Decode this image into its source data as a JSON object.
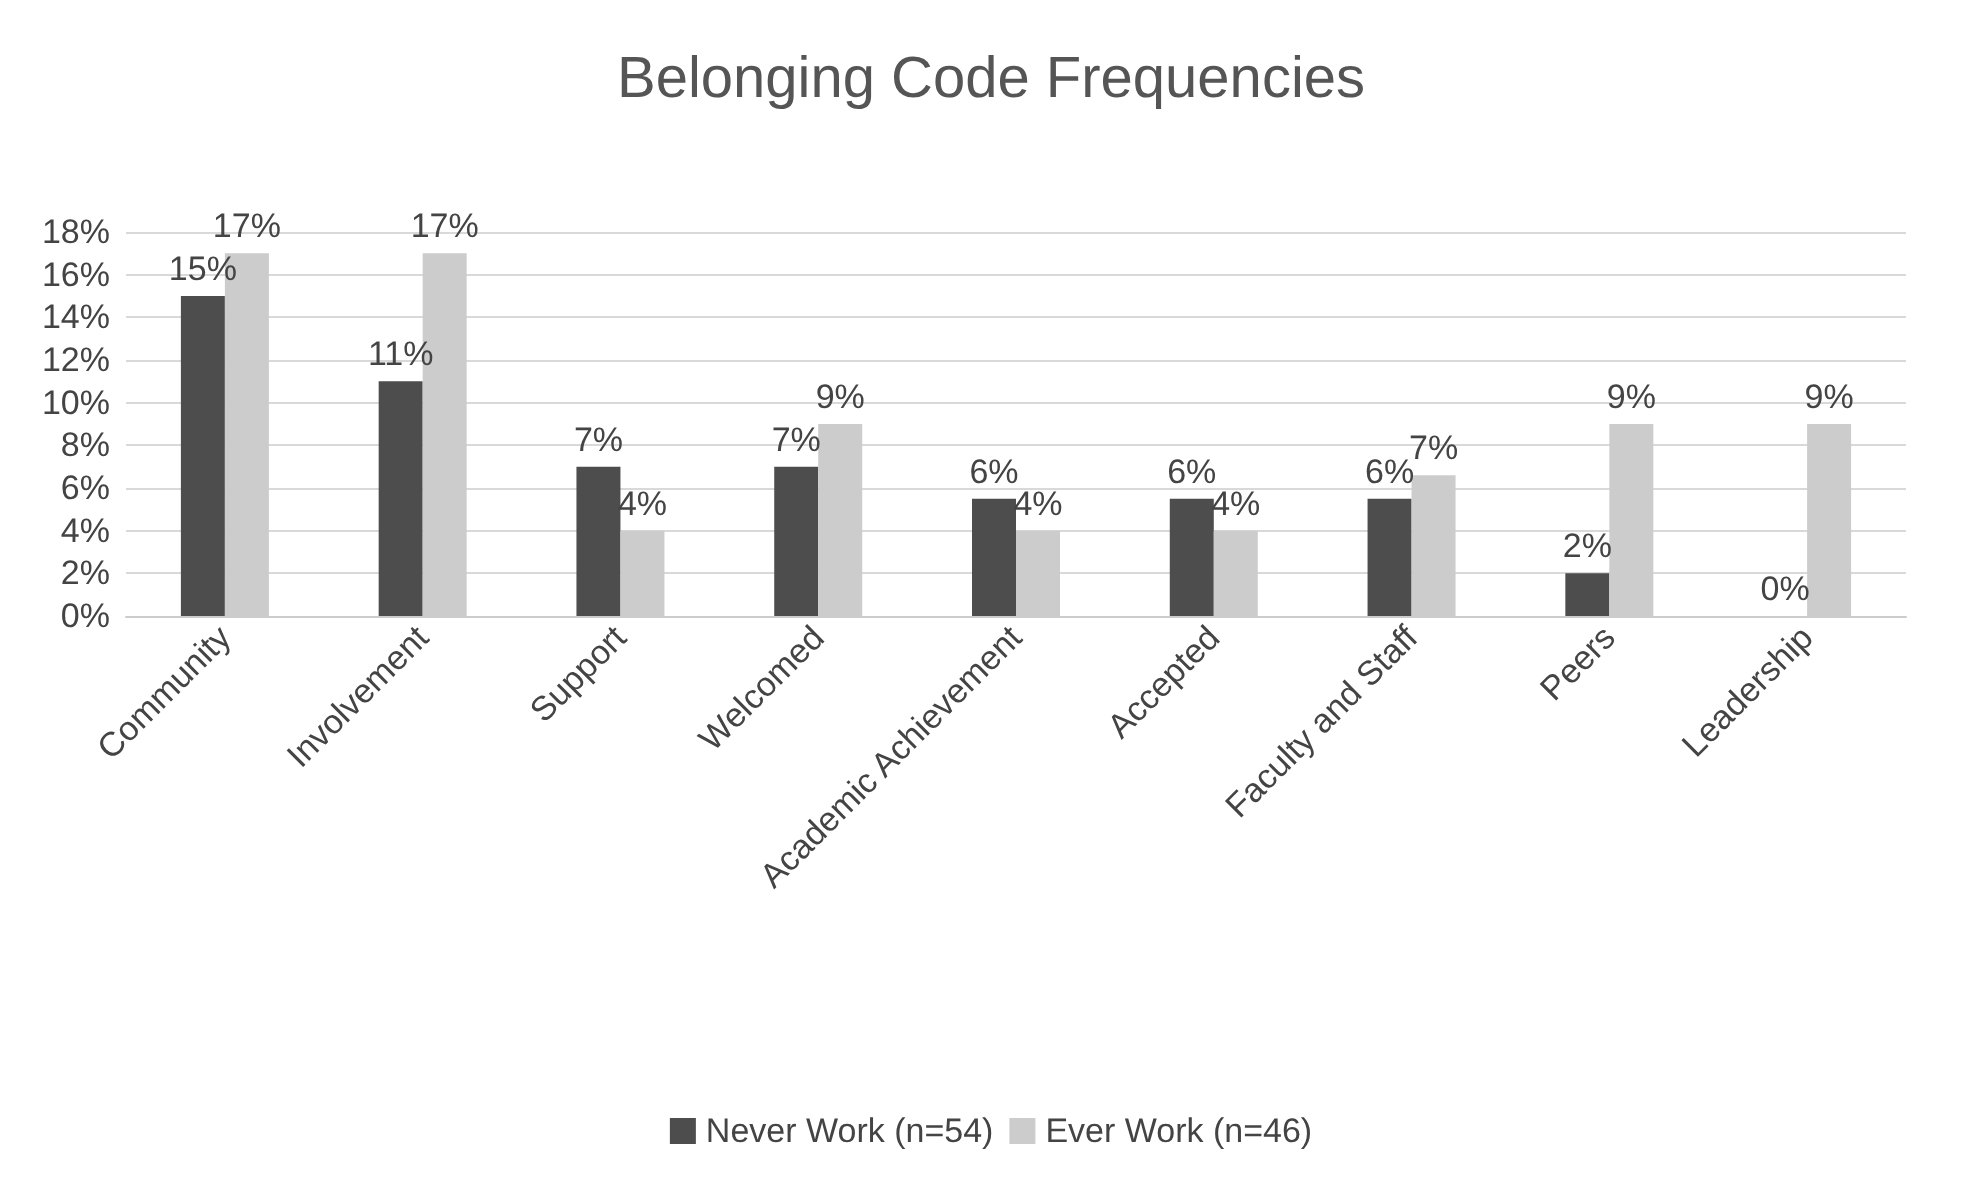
{
  "chart_data": {
    "type": "bar",
    "title": "Belonging Code Frequencies",
    "categories": [
      "Community",
      "Involvement",
      "Support",
      "Welcomed",
      "Academic Achievement",
      "Accepted",
      "Faculty and Staff",
      "Peers",
      "Leadership"
    ],
    "series": [
      {
        "name": "Never Work (n=54)",
        "color": "#4d4d4d",
        "values": [
          15,
          11,
          7,
          7,
          5.5,
          5.5,
          5.5,
          2,
          0
        ],
        "value_labels": [
          "15%",
          "11%",
          "7%",
          "7%",
          "6%",
          "6%",
          "6%",
          "2%",
          "0%"
        ]
      },
      {
        "name": "Ever Work (n=46)",
        "color": "#cccccc",
        "values": [
          17,
          17,
          4,
          9,
          4,
          4,
          6.6,
          9,
          9
        ],
        "value_labels": [
          "17%",
          "17%",
          "4%",
          "9%",
          "4%",
          "4%",
          "7%",
          "9%",
          "9%"
        ]
      }
    ],
    "ylim": [
      0,
      18
    ],
    "yticks": [
      {
        "value": 0,
        "label": "0%"
      },
      {
        "value": 2,
        "label": "2%"
      },
      {
        "value": 4,
        "label": "4%"
      },
      {
        "value": 6,
        "label": "6%"
      },
      {
        "value": 8,
        "label": "8%"
      },
      {
        "value": 10,
        "label": "10%"
      },
      {
        "value": 12,
        "label": "12%"
      },
      {
        "value": 14,
        "label": "14%"
      },
      {
        "value": 16,
        "label": "16%"
      },
      {
        "value": 18,
        "label": "18%"
      }
    ],
    "grid": "y",
    "legend": "bottom"
  }
}
